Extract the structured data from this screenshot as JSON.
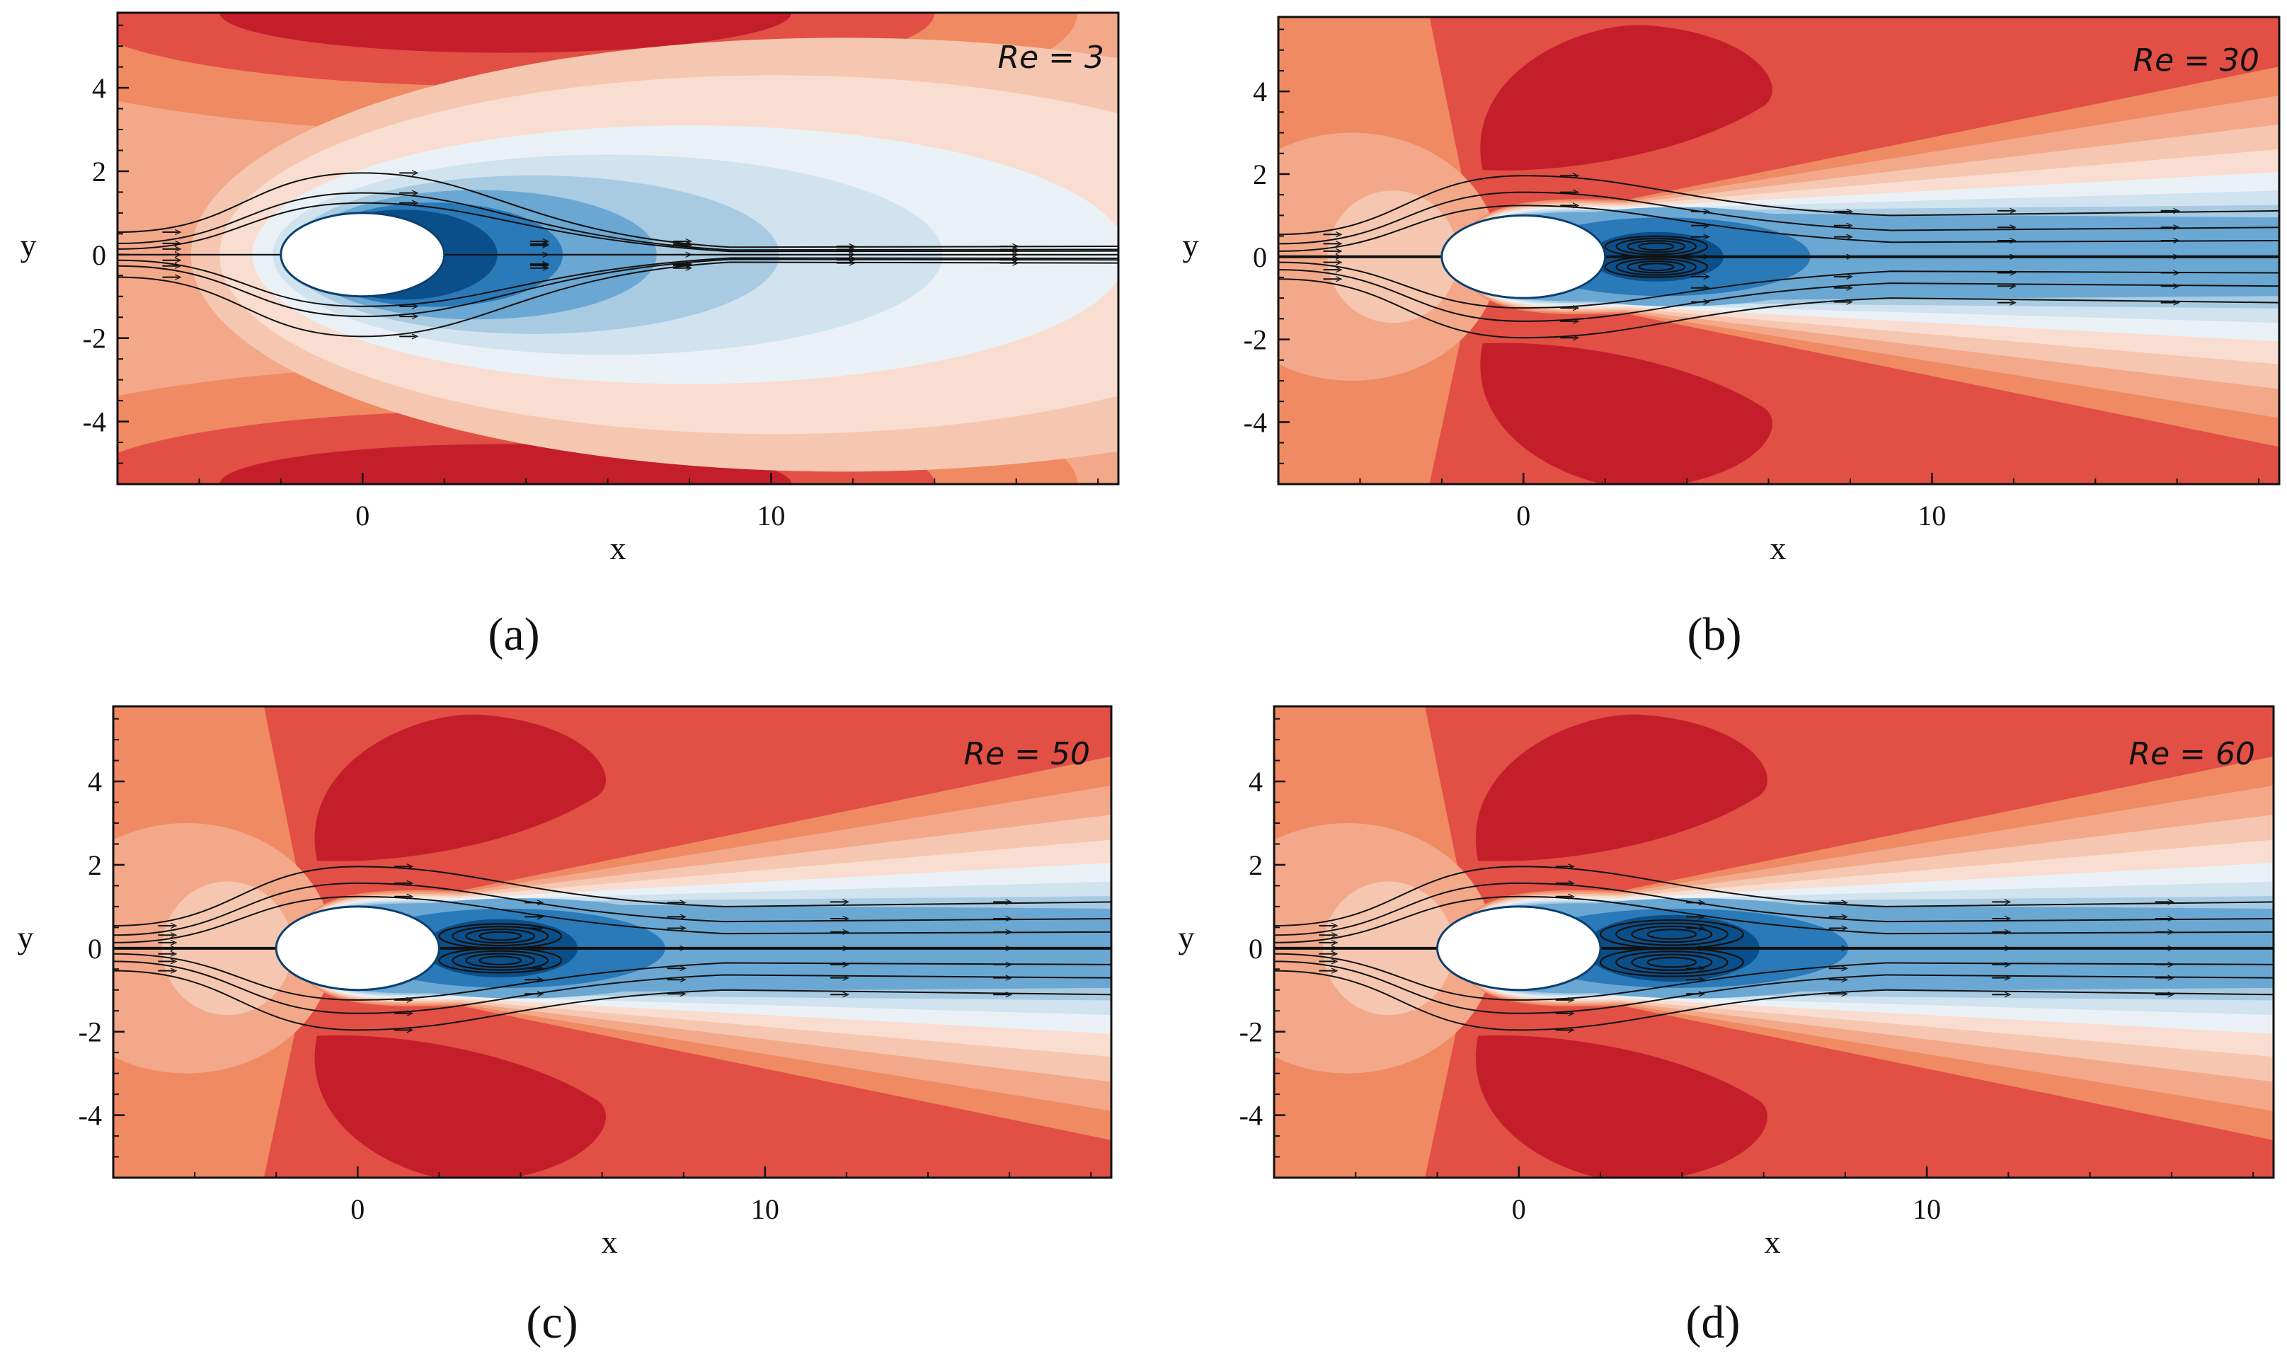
{
  "figure": {
    "panels": [
      "a",
      "b",
      "c",
      "d"
    ]
  },
  "chart_data": [
    {
      "id": "a",
      "type": "contour",
      "caption": "(a)",
      "annotation": "Re = 3",
      "reynolds": 3,
      "xlabel": "x",
      "ylabel": "y",
      "xlim": [
        -6,
        18.5
      ],
      "ylim": [
        -5.5,
        5.8
      ],
      "xticks": [
        0,
        10
      ],
      "xtick_labels": [
        "0",
        "10"
      ],
      "yticks": [
        -4,
        -2,
        0,
        2,
        4
      ],
      "ytick_labels": [
        "-4",
        "-2",
        "0",
        "2",
        "4"
      ],
      "body": {
        "center": [
          0,
          0
        ],
        "semi_axis_x": 2,
        "semi_axis_y": 1
      },
      "streamline_y0": [
        -0.6,
        -0.3,
        -0.15,
        0,
        0.15,
        0.3,
        0.6
      ],
      "streamlines": "attached",
      "palette": {
        "red": [
          "#f9ddd0",
          "#f6c7b0",
          "#f3a88a",
          "#ef8a63",
          "#e14f45",
          "#c41e2b"
        ],
        "blue": [
          "#eaf1f6",
          "#d1e3ef",
          "#a8cbe2",
          "#6aa8d3",
          "#2a7ab9",
          "#0b4f8a"
        ]
      }
    },
    {
      "id": "b",
      "type": "contour",
      "caption": "(b)",
      "annotation": "Re = 30",
      "reynolds": 30,
      "xlabel": "x",
      "ylabel": "y",
      "xlim": [
        -6,
        18.5
      ],
      "ylim": [
        -5.5,
        5.8
      ],
      "xticks": [
        0,
        10
      ],
      "xtick_labels": [
        "0",
        "10"
      ],
      "yticks": [
        -4,
        -2,
        0,
        2,
        4
      ],
      "ytick_labels": [
        "-4",
        "-2",
        "0",
        "2",
        "4"
      ],
      "body": {
        "center": [
          0,
          0
        ],
        "semi_axis_x": 2,
        "semi_axis_y": 1
      },
      "recirculation": {
        "x_start": 2,
        "x_end": 4.5,
        "half_height": 0.55
      },
      "streamline_y0": [
        -0.6,
        -0.35,
        -0.15,
        0,
        0.15,
        0.35,
        0.6
      ],
      "streamlines": "separated"
    },
    {
      "id": "c",
      "type": "contour",
      "caption": "(c)",
      "annotation": "Re = 50",
      "reynolds": 50,
      "xlabel": "x",
      "ylabel": "y",
      "xlim": [
        -6,
        18.5
      ],
      "ylim": [
        -5.5,
        5.8
      ],
      "xticks": [
        0,
        10
      ],
      "xtick_labels": [
        "0",
        "10"
      ],
      "yticks": [
        -4,
        -2,
        0,
        2,
        4
      ],
      "ytick_labels": [
        "-4",
        "-2",
        "0",
        "2",
        "4"
      ],
      "body": {
        "center": [
          0,
          0
        ],
        "semi_axis_x": 2,
        "semi_axis_y": 1
      },
      "recirculation": {
        "x_start": 2,
        "x_end": 5,
        "half_height": 0.65
      },
      "streamline_y0": [
        -0.6,
        -0.35,
        -0.15,
        0,
        0.15,
        0.35,
        0.6
      ],
      "streamlines": "separated"
    },
    {
      "id": "d",
      "type": "contour",
      "caption": "(d)",
      "annotation": "Re = 60",
      "reynolds": 60,
      "xlabel": "x",
      "ylabel": "y",
      "xlim": [
        -6,
        18.5
      ],
      "ylim": [
        -5.5,
        5.8
      ],
      "xticks": [
        0,
        10
      ],
      "xtick_labels": [
        "0",
        "10"
      ],
      "yticks": [
        -4,
        -2,
        0,
        2,
        4
      ],
      "ytick_labels": [
        "-4",
        "-2",
        "0",
        "2",
        "4"
      ],
      "body": {
        "center": [
          0,
          0
        ],
        "semi_axis_x": 2,
        "semi_axis_y": 1
      },
      "recirculation": {
        "x_start": 2,
        "x_end": 5.5,
        "half_height": 0.75
      },
      "streamline_y0": [
        -0.6,
        -0.35,
        -0.15,
        0,
        0.15,
        0.35,
        0.6
      ],
      "streamlines": "separated"
    }
  ]
}
